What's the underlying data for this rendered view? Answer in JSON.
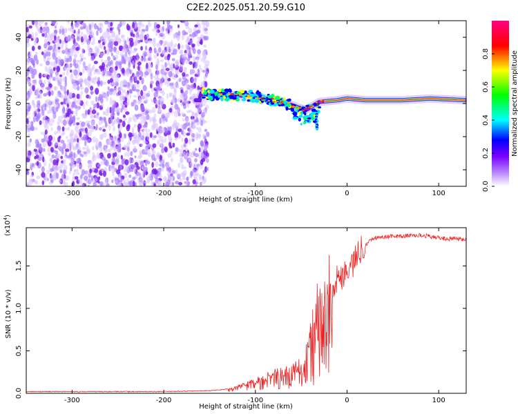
{
  "figure": {
    "title": "C2E2.2025.051.20.59.G10"
  },
  "chart_data": [
    {
      "type": "heatmap",
      "xlabel": "Height of straight line (km)",
      "ylabel": "Frequency (Hz)",
      "xlim": [
        -350,
        130
      ],
      "ylim": [
        -50,
        50
      ],
      "x_ticks": [
        -300,
        -200,
        -100,
        0,
        100
      ],
      "y_ticks": [
        -40,
        -20,
        0,
        20,
        40
      ],
      "grid": false,
      "noise_region_x": [
        -350,
        -160
      ],
      "ridge": [
        {
          "x": -160,
          "y": 6
        },
        {
          "x": -140,
          "y": 5
        },
        {
          "x": -120,
          "y": 5
        },
        {
          "x": -100,
          "y": 4
        },
        {
          "x": -80,
          "y": 2
        },
        {
          "x": -60,
          "y": -1
        },
        {
          "x": -45,
          "y": -4
        },
        {
          "x": -30,
          "y": 1
        },
        {
          "x": -10,
          "y": 2
        },
        {
          "x": 0,
          "y": 3
        },
        {
          "x": 20,
          "y": 2
        },
        {
          "x": 60,
          "y": 2
        },
        {
          "x": 90,
          "y": 3
        },
        {
          "x": 130,
          "y": 2
        }
      ],
      "colorbar": {
        "label": "Normalized spectral amplitude",
        "range": [
          0,
          1
        ],
        "ticks": [
          0.0,
          0.2,
          0.4,
          0.6,
          0.8
        ],
        "tick_labels": [
          "0.0",
          "0.2",
          "0.4",
          "0.6",
          "0.8"
        ],
        "colors": [
          "#ffffff",
          "#7b00ff",
          "#0000ff",
          "#00ffff",
          "#00ff00",
          "#ffff00",
          "#ff0000",
          "#ff0080"
        ]
      }
    },
    {
      "type": "line",
      "xlabel": "Height of straight line (km)",
      "ylabel": "SNR (10 * v/v)",
      "y_exponent_label": "(x10",
      "y_exponent_power": "4",
      "y_exponent_close": ")",
      "xlim": [
        -350,
        130
      ],
      "ylim": [
        0,
        1.95
      ],
      "x_ticks": [
        -300,
        -200,
        -100,
        0,
        100
      ],
      "y_ticks": [
        0.0,
        0.5,
        1.0,
        1.5
      ],
      "y_tick_labels": [
        "0.0",
        "0.5",
        "1.0",
        "1.5"
      ],
      "grid": false,
      "series": [
        {
          "color": "#ee2222",
          "x": [
            -350,
            -300,
            -250,
            -200,
            -150,
            -130,
            -115,
            -100,
            -90,
            -80,
            -70,
            -60,
            -50,
            -45,
            -40,
            -35,
            -30,
            -25,
            -20,
            -15,
            -10,
            -5,
            0,
            5,
            10,
            15,
            20,
            25,
            30,
            40,
            50,
            60,
            70,
            80,
            90,
            100,
            110,
            120,
            130
          ],
          "y": [
            0.02,
            0.02,
            0.02,
            0.02,
            0.03,
            0.05,
            0.1,
            0.15,
            0.2,
            0.25,
            0.25,
            0.28,
            0.35,
            0.5,
            0.7,
            0.9,
            1.1,
            1.2,
            1.3,
            1.3,
            1.35,
            1.4,
            1.45,
            1.5,
            1.6,
            1.7,
            1.75,
            1.8,
            1.83,
            1.84,
            1.85,
            1.85,
            1.86,
            1.86,
            1.85,
            1.83,
            1.82,
            1.82,
            1.81
          ]
        }
      ]
    }
  ]
}
